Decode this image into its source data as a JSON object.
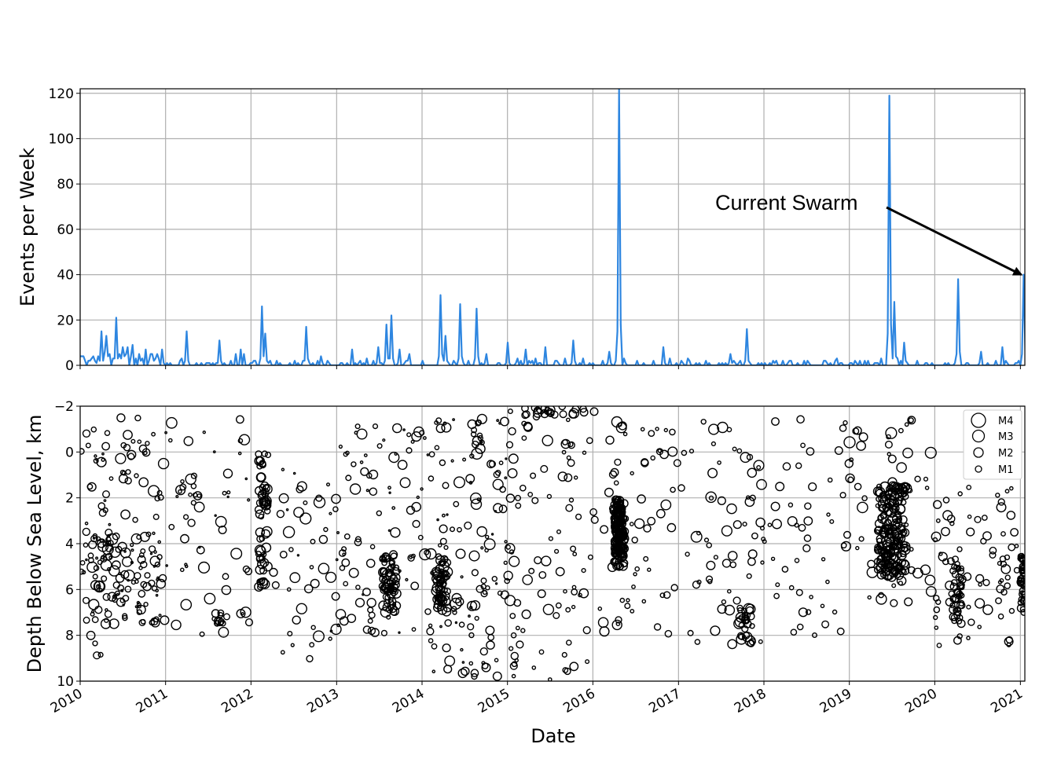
{
  "chart_data": [
    {
      "type": "line",
      "ylabel": "Events per Week",
      "ylim": [
        0,
        122
      ],
      "yticks": [
        "0",
        "20",
        "40",
        "60",
        "80",
        "100",
        "120"
      ],
      "xlim": [
        "2010-01-01",
        "2021-01-20"
      ],
      "grid": true,
      "line_color": "#2e86e0",
      "annotation": {
        "text": "Current Swarm",
        "points_to": {
          "date": "2021-01-18",
          "value": 40
        }
      },
      "peaks": [
        [
          "2010-01-05",
          4
        ],
        [
          "2010-01-20",
          1
        ],
        [
          "2010-02-10",
          2
        ],
        [
          "2010-02-25",
          4
        ],
        [
          "2010-03-10",
          1
        ],
        [
          "2010-04-01",
          15
        ],
        [
          "2010-04-15",
          6
        ],
        [
          "2010-04-25",
          13
        ],
        [
          "2010-05-10",
          5
        ],
        [
          "2010-05-20",
          3
        ],
        [
          "2010-06-05",
          21
        ],
        [
          "2010-06-18",
          5
        ],
        [
          "2010-07-01",
          8
        ],
        [
          "2010-07-12",
          4
        ],
        [
          "2010-07-25",
          8
        ],
        [
          "2010-08-10",
          9
        ],
        [
          "2010-08-25",
          3
        ],
        [
          "2010-09-15",
          2
        ],
        [
          "2010-10-05",
          7
        ],
        [
          "2010-10-20",
          2
        ],
        [
          "2010-11-15",
          1
        ],
        [
          "2010-12-15",
          7
        ],
        [
          "2011-01-20",
          1
        ],
        [
          "2011-03-10",
          3
        ],
        [
          "2011-03-30",
          15
        ],
        [
          "2011-05-15",
          1
        ],
        [
          "2011-07-10",
          1
        ],
        [
          "2011-08-20",
          11
        ],
        [
          "2011-10-10",
          2
        ],
        [
          "2011-10-25",
          5
        ],
        [
          "2011-11-20",
          7
        ],
        [
          "2011-12-05",
          5
        ],
        [
          "2012-02-15",
          26
        ],
        [
          "2012-03-05",
          14
        ],
        [
          "2012-04-20",
          1
        ],
        [
          "2012-06-15",
          1
        ],
        [
          "2012-08-25",
          17
        ],
        [
          "2012-09-20",
          1
        ],
        [
          "2012-10-25",
          4
        ],
        [
          "2012-11-20",
          2
        ],
        [
          "2013-01-20",
          1
        ],
        [
          "2013-03-10",
          7
        ],
        [
          "2013-04-10",
          2
        ],
        [
          "2013-05-10",
          3
        ],
        [
          "2013-06-10",
          2
        ],
        [
          "2013-06-25",
          8
        ],
        [
          "2013-08-05",
          18
        ],
        [
          "2013-08-20",
          22
        ],
        [
          "2013-09-25",
          7
        ],
        [
          "2013-11-05",
          5
        ],
        [
          "2014-01-05",
          2
        ],
        [
          "2014-03-20",
          31
        ],
        [
          "2014-04-10",
          13
        ],
        [
          "2014-05-15",
          2
        ],
        [
          "2014-06-15",
          27
        ],
        [
          "2014-07-15",
          2
        ],
        [
          "2014-08-25",
          25
        ],
        [
          "2014-10-05",
          5
        ],
        [
          "2014-11-20",
          1
        ],
        [
          "2014-12-30",
          10
        ],
        [
          "2015-02-10",
          3
        ],
        [
          "2015-03-20",
          7
        ],
        [
          "2015-05-01",
          3
        ],
        [
          "2015-06-10",
          8
        ],
        [
          "2015-07-25",
          2
        ],
        [
          "2015-09-05",
          3
        ],
        [
          "2015-10-10",
          11
        ],
        [
          "2015-11-20",
          3
        ],
        [
          "2016-02-10",
          2
        ],
        [
          "2016-03-10",
          6
        ],
        [
          "2016-04-05",
          2
        ],
        [
          "2016-04-20",
          122
        ],
        [
          "2016-05-10",
          3
        ],
        [
          "2016-07-10",
          2
        ],
        [
          "2016-09-15",
          2
        ],
        [
          "2016-10-25",
          8
        ],
        [
          "2016-11-25",
          3
        ],
        [
          "2017-02-10",
          3
        ],
        [
          "2017-05-15",
          1
        ],
        [
          "2017-08-10",
          5
        ],
        [
          "2017-09-20",
          2
        ],
        [
          "2017-10-20",
          16
        ],
        [
          "2017-12-05",
          1
        ],
        [
          "2018-02-10",
          2
        ],
        [
          "2018-04-10",
          1
        ],
        [
          "2018-06-20",
          2
        ],
        [
          "2018-09-15",
          2
        ],
        [
          "2018-11-10",
          3
        ],
        [
          "2019-01-10",
          1
        ],
        [
          "2019-03-20",
          2
        ],
        [
          "2019-05-20",
          3
        ],
        [
          "2019-06-22",
          119
        ],
        [
          "2019-07-10",
          28
        ],
        [
          "2019-07-25",
          3
        ],
        [
          "2019-08-25",
          10
        ],
        [
          "2019-10-20",
          2
        ],
        [
          "2019-12-20",
          1
        ],
        [
          "2020-02-25",
          1
        ],
        [
          "2020-04-08",
          38
        ],
        [
          "2020-05-20",
          1
        ],
        [
          "2020-07-20",
          6
        ],
        [
          "2020-09-20",
          2
        ],
        [
          "2020-10-18",
          8
        ],
        [
          "2020-12-20",
          1
        ],
        [
          "2021-01-18",
          40
        ]
      ]
    },
    {
      "type": "scatter",
      "xlabel": "Date",
      "ylabel": "Depth Below Sea Level, km",
      "ylim": [
        10,
        -2
      ],
      "yticks": [
        "−2",
        "0",
        "2",
        "4",
        "6",
        "8",
        "10"
      ],
      "xticks": [
        "2010",
        "2011",
        "2012",
        "2013",
        "2014",
        "2015",
        "2016",
        "2017",
        "2018",
        "2019",
        "2020",
        "2021"
      ],
      "grid": true,
      "legend": {
        "position": "upper-right",
        "entries": [
          "M4",
          "M3",
          "M2",
          "M1"
        ]
      },
      "clusters": [
        {
          "from": "2010-01-01",
          "to": "2010-05-15",
          "depth_min": -1.5,
          "depth_max": 9,
          "mag_min": 0,
          "mag_max": 2.5,
          "count": 45
        },
        {
          "from": "2010-02-15",
          "to": "2010-12-31",
          "depth_min": 3.5,
          "depth_max": 7.5,
          "mag_min": 0,
          "mag_max": 3,
          "count": 120
        },
        {
          "from": "2010-06-01",
          "to": "2010-12-31",
          "depth_min": -1.5,
          "depth_max": 3,
          "mag_min": 0.5,
          "mag_max": 3,
          "count": 30
        },
        {
          "from": "2011-01-01",
          "to": "2011-12-31",
          "depth_min": -1.5,
          "depth_max": 8,
          "mag_min": 0,
          "mag_max": 3,
          "count": 60
        },
        {
          "from": "2011-08-01",
          "to": "2011-09-15",
          "depth_min": 7,
          "depth_max": 7.6,
          "mag_min": 1,
          "mag_max": 2,
          "count": 10
        },
        {
          "from": "2012-02-01",
          "to": "2012-03-15",
          "depth_min": 0,
          "depth_max": 6,
          "mag_min": 1,
          "mag_max": 2.8,
          "count": 60
        },
        {
          "from": "2012-04-01",
          "to": "2012-12-31",
          "depth_min": 0.5,
          "depth_max": 9.5,
          "mag_min": 0,
          "mag_max": 3,
          "count": 45
        },
        {
          "from": "2013-01-01",
          "to": "2013-12-31",
          "depth_min": -1.5,
          "depth_max": 8,
          "mag_min": 0,
          "mag_max": 2.8,
          "count": 90
        },
        {
          "from": "2013-07-15",
          "to": "2013-09-15",
          "depth_min": 4.5,
          "depth_max": 7,
          "mag_min": 1,
          "mag_max": 2.5,
          "count": 60
        },
        {
          "from": "2014-03-01",
          "to": "2014-04-20",
          "depth_min": 4.5,
          "depth_max": 7,
          "mag_min": 1,
          "mag_max": 2.8,
          "count": 60
        },
        {
          "from": "2014-01-01",
          "to": "2014-12-31",
          "depth_min": -1.5,
          "depth_max": 9.8,
          "mag_min": 0,
          "mag_max": 3,
          "count": 120
        },
        {
          "from": "2014-08-01",
          "to": "2014-09-15",
          "depth_min": -1.5,
          "depth_max": 0,
          "mag_min": 1,
          "mag_max": 2.5,
          "count": 12
        },
        {
          "from": "2015-01-01",
          "to": "2015-12-31",
          "depth_min": -2,
          "depth_max": 10,
          "mag_min": 0.5,
          "mag_max": 2.8,
          "count": 90
        },
        {
          "from": "2015-03-15",
          "to": "2015-11-30",
          "depth_min": -2,
          "depth_max": -1.6,
          "mag_min": 1.5,
          "mag_max": 2.5,
          "count": 20
        },
        {
          "from": "2016-04-01",
          "to": "2016-05-15",
          "depth_min": 2,
          "depth_max": 5,
          "mag_min": 1,
          "mag_max": 2.5,
          "count": 170
        },
        {
          "from": "2016-01-01",
          "to": "2016-12-31",
          "depth_min": -2,
          "depth_max": 8,
          "mag_min": 0.5,
          "mag_max": 3,
          "count": 70
        },
        {
          "from": "2017-01-01",
          "to": "2017-12-31",
          "depth_min": -1.5,
          "depth_max": 8.5,
          "mag_min": 0.5,
          "mag_max": 3,
          "count": 60
        },
        {
          "from": "2017-09-15",
          "to": "2017-11-15",
          "depth_min": 6.8,
          "depth_max": 8.4,
          "mag_min": 1,
          "mag_max": 2.8,
          "count": 30
        },
        {
          "from": "2018-01-01",
          "to": "2018-12-31",
          "depth_min": -1.5,
          "depth_max": 8,
          "mag_min": 0.5,
          "mag_max": 2.5,
          "count": 50
        },
        {
          "from": "2019-05-01",
          "to": "2019-08-30",
          "depth_min": 1.5,
          "depth_max": 5.5,
          "mag_min": 1,
          "mag_max": 2.8,
          "count": 200
        },
        {
          "from": "2019-01-01",
          "to": "2019-12-31",
          "depth_min": -1.5,
          "depth_max": 7,
          "mag_min": 0.5,
          "mag_max": 3,
          "count": 60
        },
        {
          "from": "2020-01-01",
          "to": "2020-12-31",
          "depth_min": 1.5,
          "depth_max": 8.5,
          "mag_min": 0.5,
          "mag_max": 2.5,
          "count": 80
        },
        {
          "from": "2020-03-15",
          "to": "2020-04-30",
          "depth_min": 4.5,
          "depth_max": 7.5,
          "mag_min": 1,
          "mag_max": 2,
          "count": 40
        },
        {
          "from": "2021-01-01",
          "to": "2021-01-20",
          "depth_min": 4.5,
          "depth_max": 7,
          "mag_min": 1,
          "mag_max": 2,
          "count": 40
        }
      ]
    }
  ]
}
